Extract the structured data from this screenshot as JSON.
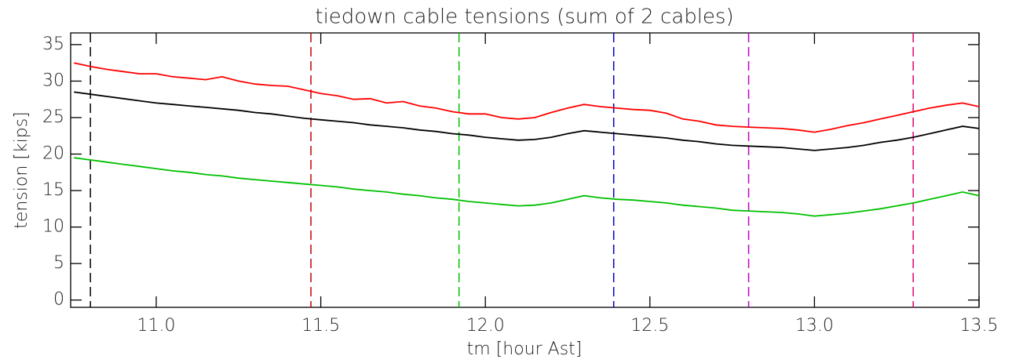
{
  "chart_data": {
    "type": "line",
    "title": "tiedown cable tensions (sum of 2 cables)",
    "xlabel": "tm [hour Ast]",
    "ylabel": "tension [kips]",
    "x": [
      10.75,
      10.8,
      10.85,
      10.9,
      10.95,
      11.0,
      11.05,
      11.1,
      11.15,
      11.2,
      11.25,
      11.3,
      11.35,
      11.4,
      11.45,
      11.5,
      11.55,
      11.6,
      11.65,
      11.7,
      11.75,
      11.8,
      11.85,
      11.9,
      11.95,
      12.0,
      12.05,
      12.1,
      12.15,
      12.2,
      12.25,
      12.3,
      12.35,
      12.4,
      12.45,
      12.5,
      12.55,
      12.6,
      12.65,
      12.7,
      12.75,
      12.8,
      12.85,
      12.9,
      12.95,
      13.0,
      13.05,
      13.1,
      13.15,
      13.2,
      13.25,
      13.3,
      13.35,
      13.4,
      13.45,
      13.5
    ],
    "series": [
      {
        "color": "#ff0000",
        "values": [
          32.5,
          32.0,
          31.6,
          31.3,
          31.0,
          31.0,
          30.6,
          30.4,
          30.2,
          30.6,
          30.0,
          29.6,
          29.4,
          29.3,
          28.8,
          28.3,
          28.0,
          27.5,
          27.6,
          27.0,
          27.2,
          26.6,
          26.3,
          25.8,
          25.5,
          25.5,
          25.0,
          24.8,
          25.0,
          25.7,
          26.3,
          26.8,
          26.5,
          26.3,
          26.1,
          26.0,
          25.6,
          24.8,
          24.5,
          24.0,
          23.8,
          23.7,
          23.6,
          23.5,
          23.3,
          23.0,
          23.4,
          23.9,
          24.3,
          24.8,
          25.3,
          25.8,
          26.3,
          26.7,
          27.0,
          26.5
        ]
      },
      {
        "color": "#000000",
        "values": [
          28.5,
          28.2,
          27.9,
          27.6,
          27.3,
          27.0,
          26.8,
          26.6,
          26.4,
          26.2,
          26.0,
          25.7,
          25.5,
          25.2,
          24.9,
          24.7,
          24.5,
          24.3,
          24.0,
          23.8,
          23.6,
          23.3,
          23.1,
          22.8,
          22.6,
          22.3,
          22.1,
          21.9,
          22.0,
          22.3,
          22.8,
          23.2,
          23.0,
          22.8,
          22.6,
          22.4,
          22.2,
          21.9,
          21.7,
          21.4,
          21.2,
          21.1,
          21.0,
          20.9,
          20.7,
          20.5,
          20.7,
          20.9,
          21.2,
          21.6,
          21.9,
          22.3,
          22.8,
          23.3,
          23.8,
          23.5
        ]
      },
      {
        "color": "#00c000",
        "values": [
          19.5,
          19.2,
          18.9,
          18.6,
          18.3,
          18.0,
          17.7,
          17.5,
          17.2,
          17.0,
          16.7,
          16.5,
          16.3,
          16.1,
          15.9,
          15.7,
          15.5,
          15.2,
          15.0,
          14.8,
          14.5,
          14.3,
          14.0,
          13.8,
          13.5,
          13.3,
          13.1,
          12.9,
          13.0,
          13.3,
          13.8,
          14.3,
          14.0,
          13.8,
          13.7,
          13.5,
          13.3,
          13.0,
          12.8,
          12.6,
          12.3,
          12.2,
          12.1,
          12.0,
          11.8,
          11.5,
          11.7,
          11.9,
          12.2,
          12.5,
          12.9,
          13.3,
          13.8,
          14.3,
          14.8,
          14.3
        ]
      }
    ],
    "vlines": [
      {
        "value": 10.8,
        "color": "#000000"
      },
      {
        "value": 11.47,
        "color": "#c00000"
      },
      {
        "value": 11.92,
        "color": "#00c000"
      },
      {
        "value": 12.39,
        "color": "#0000c0"
      },
      {
        "value": 12.8,
        "color": "#c000c0"
      },
      {
        "value": 13.3,
        "color": "#e00070"
      }
    ],
    "xlim": [
      10.74,
      13.5
    ],
    "ylim": [
      -1,
      36.6
    ],
    "xticks": [
      {
        "value": 11,
        "label": "11.0"
      },
      11.5,
      {
        "value": 12,
        "label": "12.0"
      },
      12.5,
      {
        "value": 13,
        "label": "13.0"
      },
      13.5
    ],
    "yticks": [
      0,
      5,
      10,
      15,
      20,
      25,
      30,
      35
    ]
  }
}
